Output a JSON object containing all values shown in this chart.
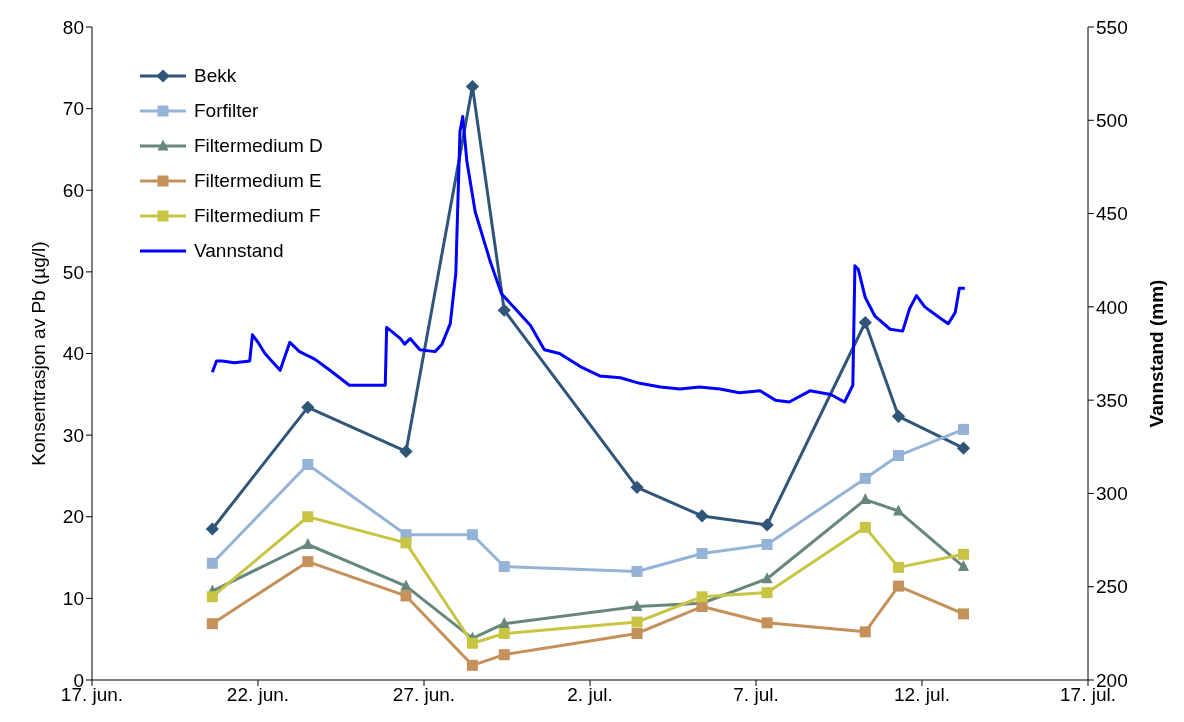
{
  "chart_data": {
    "type": "line",
    "ylabel": "Konsentrasjon av Pb (µg/l)",
    "y2label": "Vannstand (mm)",
    "legend": "top left",
    "grid": false,
    "line_style": "solid",
    "xlim": [
      "--06-17",
      "--07-17"
    ],
    "xticks": [
      {
        "value": "--06-17",
        "label": "17. jun."
      },
      {
        "value": "--06-22",
        "label": "22. jun."
      },
      {
        "value": "--06-27",
        "label": "27. jun."
      },
      {
        "value": "--07-02",
        "label": "2. jul."
      },
      {
        "value": "--07-07",
        "label": "7. jul."
      },
      {
        "value": "--07-12",
        "label": "12. jul."
      },
      {
        "value": "--07-17",
        "label": "17. jul."
      }
    ],
    "ylim": [
      0,
      80
    ],
    "yticks": [
      0,
      10,
      20,
      30,
      40,
      50,
      60,
      70,
      80
    ],
    "y2lim": [
      200,
      550
    ],
    "y2ticks": [
      200,
      250,
      300,
      350,
      400,
      450,
      500,
      550
    ],
    "x": [
      "--06-20T15:00",
      "--06-23T12:00",
      "--06-26T11:00",
      "--06-28T11:00",
      "--06-29T10:00",
      "--07-03T10:00",
      "--07-05T09:00",
      "--07-07T08:00",
      "--07-10T07:00",
      "--07-11T07:00",
      "--07-13T06:00"
    ],
    "series": [
      {
        "name": "Bekk",
        "color": "#2f5579",
        "marker": "diamond",
        "values": [
          18.5,
          33.4,
          28.0,
          72.7,
          45.3,
          23.6,
          20.1,
          19.0,
          43.8,
          32.3,
          28.4
        ]
      },
      {
        "name": "Forfilter",
        "color": "#95b3d7",
        "marker": "square",
        "values": [
          14.3,
          26.4,
          17.8,
          17.8,
          13.9,
          13.3,
          15.5,
          16.6,
          24.7,
          27.5,
          30.7
        ]
      },
      {
        "name": "Filtermedium D",
        "color": "#66877a",
        "marker": "triangle",
        "values": [
          10.9,
          16.6,
          11.5,
          5.1,
          6.9,
          9.0,
          9.4,
          12.4,
          22.1,
          20.7,
          13.9
        ]
      },
      {
        "name": "Filtermedium E",
        "color": "#c4915a",
        "marker": "square",
        "values": [
          6.9,
          14.5,
          10.3,
          1.8,
          3.1,
          5.7,
          9.0,
          7.0,
          5.9,
          11.5,
          8.1
        ]
      },
      {
        "name": "Filtermedium F",
        "color": "#c8c444",
        "marker": "square",
        "values": [
          10.2,
          20.0,
          16.8,
          4.5,
          5.7,
          7.1,
          10.2,
          10.7,
          18.7,
          13.8,
          15.4
        ]
      },
      {
        "name": "Vannstand",
        "color": "#0000ff",
        "marker": "none",
        "axis": "y2",
        "x": [
          "--06-20T15:00",
          "--06-20T18:00",
          "--06-20T22:00",
          "--06-21T07:00",
          "--06-21T18:00",
          "--06-21T20:00",
          "--06-22T00:00",
          "--06-22T05:00",
          "--06-22T16:00",
          "--06-22T23:00",
          "--06-23T06:00",
          "--06-23T17:00",
          "--06-24T04:00",
          "--06-24T18:00",
          "--06-25T05:00",
          "--06-25T20:00",
          "--06-25T21:00",
          "--06-26T07:00",
          "--06-26T10:00",
          "--06-26T14:00",
          "--06-26T21:00",
          "--06-27T08:00",
          "--06-27T13:00",
          "--06-27T19:00",
          "--06-27T23:00",
          "--06-28T02:00",
          "--06-28T04:00",
          "--06-28T07:00",
          "--06-28T13:00",
          "--06-29T00:00",
          "--06-29T08:00",
          "--06-29T18:00",
          "--06-30T05:00",
          "--06-30T15:00",
          "--07-01T02:00",
          "--07-01T17:00",
          "--07-02T07:00",
          "--07-02T22:00",
          "--07-03T12:00",
          "--07-04T03:00",
          "--07-04T17:00",
          "--07-05T07:00",
          "--07-05T22:00",
          "--07-06T12:00",
          "--07-07T03:00",
          "--07-07T14:00",
          "--07-08T00:00",
          "--07-08T15:00",
          "--07-09T06:00",
          "--07-09T16:00",
          "--07-09T22:00",
          "--07-09T23:30",
          "--07-10T02:00",
          "--07-10T07:00",
          "--07-10T14:00",
          "--07-11T01:00",
          "--07-11T10:00",
          "--07-11T15:00",
          "--07-11T20:00",
          "--07-12T02:00",
          "--07-12T13:00",
          "--07-12T19:00",
          "--07-13T00:00",
          "--07-13T03:00",
          "--07-13T07:00"
        ],
        "values": [
          365,
          371,
          371,
          370,
          371,
          385,
          381,
          375,
          366,
          381,
          376,
          372,
          366,
          358,
          358,
          358,
          389,
          383,
          380,
          383,
          377,
          376,
          380,
          391,
          418,
          494,
          502,
          478,
          451,
          424,
          407,
          399,
          390,
          377,
          375,
          368,
          363,
          362,
          359,
          357,
          356,
          357,
          356,
          354,
          355,
          350,
          349,
          355,
          353,
          349,
          358,
          422,
          420,
          405,
          395,
          388,
          387,
          399,
          406,
          400,
          394,
          391,
          397,
          410,
          410
        ]
      }
    ]
  }
}
